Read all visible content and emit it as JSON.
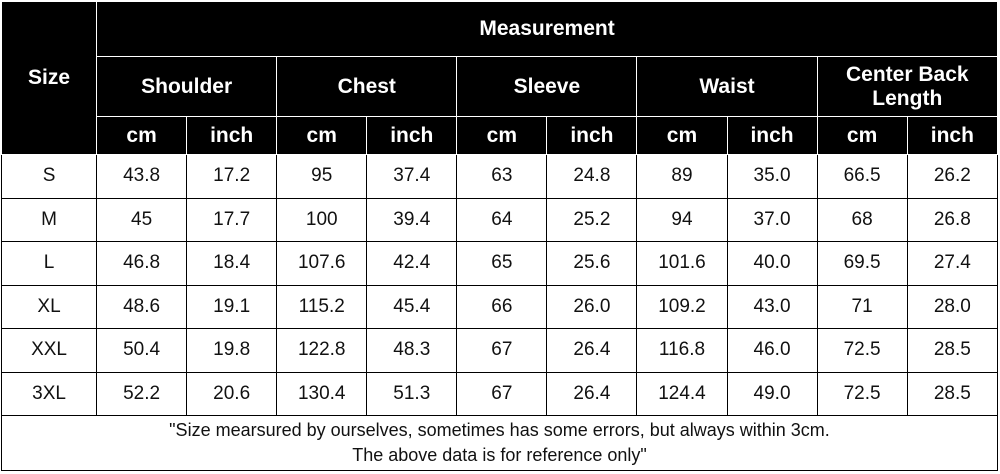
{
  "header": {
    "size": "Size",
    "measurement": "Measurement",
    "groups": [
      "Shoulder",
      "Chest",
      "Sleeve",
      "Waist",
      "Center Back Length"
    ],
    "units": [
      "cm",
      "inch",
      "cm",
      "inch",
      "cm",
      "inch",
      "cm",
      "inch",
      "cm",
      "inch"
    ]
  },
  "table": {
    "rows": [
      [
        "S",
        "43.8",
        "17.2",
        "95",
        "37.4",
        "63",
        "24.8",
        "89",
        "35.0",
        "66.5",
        "26.2"
      ],
      [
        "M",
        "45",
        "17.7",
        "100",
        "39.4",
        "64",
        "25.2",
        "94",
        "37.0",
        "68",
        "26.8"
      ],
      [
        "L",
        "46.8",
        "18.4",
        "107.6",
        "42.4",
        "65",
        "25.6",
        "101.6",
        "40.0",
        "69.5",
        "27.4"
      ],
      [
        "XL",
        "48.6",
        "19.1",
        "115.2",
        "45.4",
        "66",
        "26.0",
        "109.2",
        "43.0",
        "71",
        "28.0"
      ],
      [
        "XXL",
        "50.4",
        "19.8",
        "122.8",
        "48.3",
        "67",
        "26.4",
        "116.8",
        "46.0",
        "72.5",
        "28.5"
      ],
      [
        "3XL",
        "52.2",
        "20.6",
        "130.4",
        "51.3",
        "67",
        "26.4",
        "124.4",
        "49.0",
        "72.5",
        "28.5"
      ]
    ]
  },
  "footer": {
    "lines": [
      "\"Size mearsured by ourselves, sometimes has some errors, but always within 3cm.",
      "The above data is for reference only\""
    ]
  }
}
